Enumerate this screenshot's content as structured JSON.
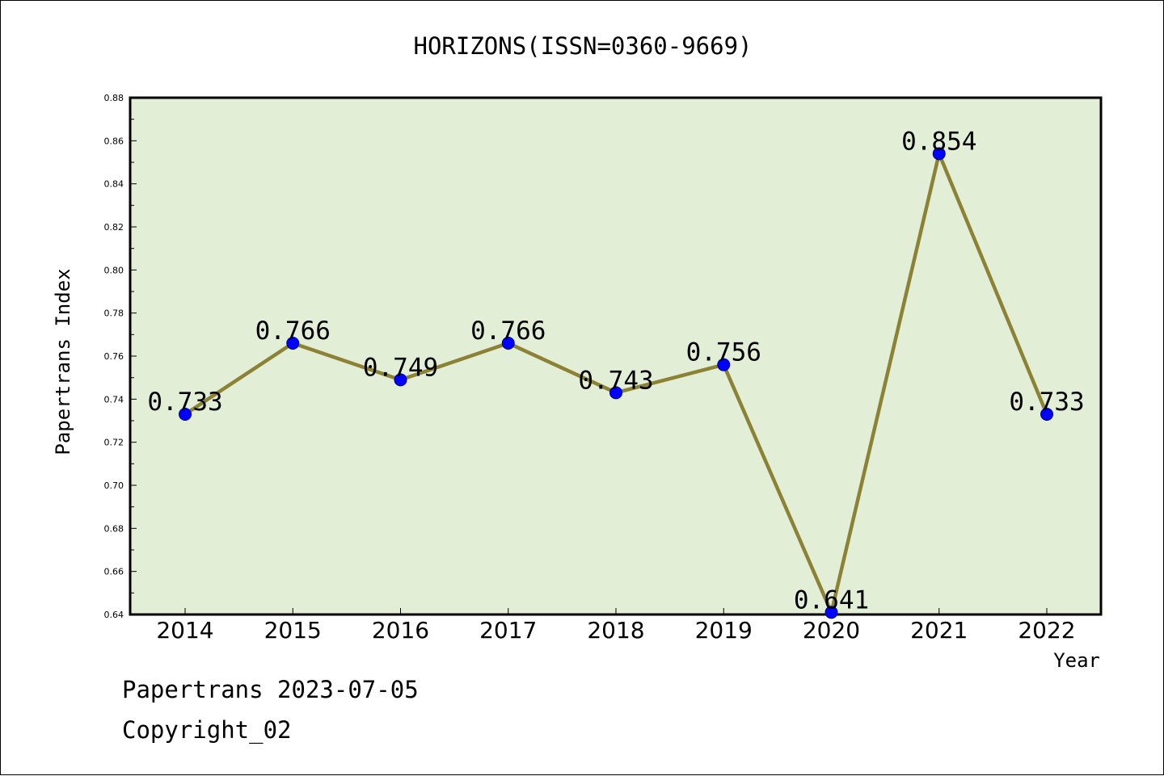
{
  "chart_data": {
    "type": "line",
    "title": "HORIZONS(ISSN=0360-9669)",
    "xlabel": "Year",
    "ylabel": "Papertrans Index",
    "categories": [
      "2014",
      "2015",
      "2016",
      "2017",
      "2018",
      "2019",
      "2020",
      "2021",
      "2022"
    ],
    "series": [
      {
        "values": [
          0.733,
          0.766,
          0.749,
          0.766,
          0.743,
          0.756,
          0.641,
          0.854,
          0.733
        ],
        "labels": [
          "0.733",
          "0.766",
          "0.749",
          "0.766",
          "0.743",
          "0.756",
          "0.641",
          "0.854",
          "0.733"
        ]
      }
    ],
    "ylim": [
      0.64,
      0.88
    ],
    "yticks": [
      "0.64",
      "0.66",
      "0.68",
      "0.70",
      "0.72",
      "0.74",
      "0.76",
      "0.78",
      "0.80",
      "0.82",
      "0.84",
      "0.86",
      "0.88"
    ],
    "grid": false,
    "legend": "none"
  },
  "colors": {
    "plot_background": "#e2efd6",
    "line": "#8b8236",
    "marker": "#0000ff"
  },
  "footer": {
    "date_line": "Papertrans 2023-07-05",
    "copyright": "Copyright_02"
  }
}
